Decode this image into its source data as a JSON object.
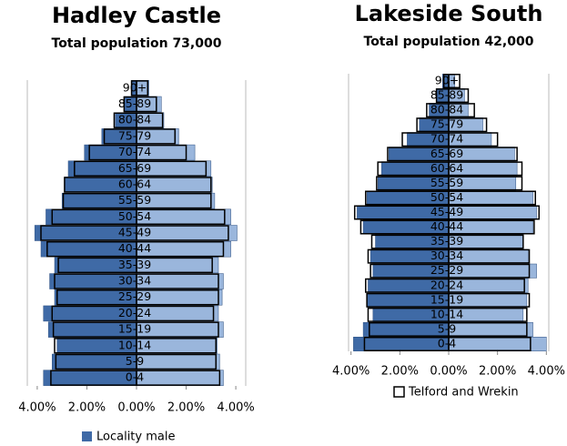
{
  "chart_data": [
    {
      "type": "pyramid",
      "title": "Hadley Castle",
      "subtitle": "Total population 73,000",
      "categories": [
        "0-4",
        "5-9",
        "10-14",
        "15-19",
        "20-24",
        "25-29",
        "30-34",
        "35-39",
        "40-44",
        "45-49",
        "50-54",
        "55-59",
        "60-64",
        "65-69",
        "70-74",
        "75-79",
        "80-84",
        "85-89",
        "90+"
      ],
      "xlim": [
        -4.4,
        4.4
      ],
      "xticks": [
        {
          "value": -4,
          "label": "4.00%"
        },
        {
          "value": -2,
          "label": "2.00%"
        },
        {
          "value": 0,
          "label": "0.00%"
        },
        {
          "value": 2,
          "label": "2.00%"
        },
        {
          "value": 4,
          "label": "4.00%"
        }
      ],
      "legend": "bottom",
      "series": [
        {
          "name": "Locality male",
          "color": "#3f6aa6",
          "style": "fill",
          "values": [
            -3.75,
            -3.4,
            -3.2,
            -3.55,
            -3.75,
            -3.3,
            -3.5,
            -3.3,
            -3.85,
            -4.1,
            -3.65,
            -3.0,
            -2.9,
            -2.75,
            -2.1,
            -1.4,
            -0.85,
            -0.5,
            -0.2
          ]
        },
        {
          "color": "#9ab6dc",
          "style": "fill",
          "values": [
            3.5,
            3.35,
            3.25,
            3.5,
            3.3,
            3.45,
            3.5,
            3.3,
            3.8,
            4.05,
            3.8,
            3.15,
            3.05,
            3.0,
            2.35,
            1.7,
            1.1,
            1.0,
            0.5
          ]
        },
        {
          "color": "#000000",
          "style": "outline",
          "values": [
            -3.45,
            -3.25,
            -3.3,
            -3.35,
            -3.4,
            -3.2,
            -3.3,
            -3.15,
            -3.6,
            -3.85,
            -3.4,
            -2.95,
            -2.9,
            -2.5,
            -1.9,
            -1.3,
            -0.9,
            -0.5,
            -0.2
          ]
        },
        {
          "color": "#000000",
          "style": "outline",
          "values": [
            3.35,
            3.2,
            3.2,
            3.3,
            3.1,
            3.3,
            3.3,
            3.05,
            3.5,
            3.7,
            3.55,
            3.0,
            3.0,
            2.8,
            2.0,
            1.55,
            1.05,
            0.8,
            0.45
          ]
        }
      ]
    },
    {
      "type": "pyramid",
      "title": "Lakeside South",
      "subtitle": "Total population 42,000",
      "categories": [
        "0-4",
        "5-9",
        "10-14",
        "15-19",
        "20-24",
        "25-29",
        "30-34",
        "35-39",
        "40-44",
        "45-49",
        "50-54",
        "55-59",
        "60-64",
        "65-69",
        "70-74",
        "75-79",
        "80-84",
        "85-89",
        "90+"
      ],
      "xlim": [
        -4.1,
        4.1
      ],
      "xticks": [
        {
          "value": -4,
          "label": "4.00%"
        },
        {
          "value": -2,
          "label": "2.00%"
        },
        {
          "value": 0,
          "label": "0.00%"
        },
        {
          "value": 2,
          "label": "2.00%"
        },
        {
          "value": 4,
          "label": "4.00%"
        }
      ],
      "legend": "bottom",
      "series": [
        {
          "color": "#3f6aa6",
          "style": "fill",
          "values": [
            -3.9,
            -3.5,
            -3.1,
            -3.35,
            -3.3,
            -3.1,
            -3.2,
            -3.0,
            -3.5,
            -3.75,
            -3.35,
            -2.9,
            -2.75,
            -2.45,
            -1.7,
            -1.2,
            -0.8,
            -0.5,
            -0.25
          ]
        },
        {
          "color": "#9ab6dc",
          "style": "fill",
          "values": [
            4.0,
            3.45,
            3.05,
            3.2,
            3.25,
            3.6,
            3.25,
            3.05,
            3.45,
            3.6,
            3.45,
            2.75,
            2.8,
            2.7,
            1.75,
            1.4,
            0.8,
            0.65,
            0.25
          ]
        },
        {
          "name": "Telford and Wrekin",
          "color": "#000000",
          "style": "outline",
          "values": [
            -3.45,
            -3.25,
            -3.3,
            -3.35,
            -3.4,
            -3.2,
            -3.3,
            -3.15,
            -3.6,
            -3.85,
            -3.4,
            -2.95,
            -2.9,
            -2.5,
            -1.9,
            -1.3,
            -0.9,
            -0.5,
            -0.2
          ]
        },
        {
          "color": "#000000",
          "style": "outline",
          "values": [
            3.35,
            3.2,
            3.2,
            3.3,
            3.1,
            3.3,
            3.3,
            3.05,
            3.5,
            3.7,
            3.55,
            3.0,
            3.0,
            2.8,
            2.0,
            1.55,
            1.05,
            0.8,
            0.45
          ]
        }
      ]
    }
  ]
}
